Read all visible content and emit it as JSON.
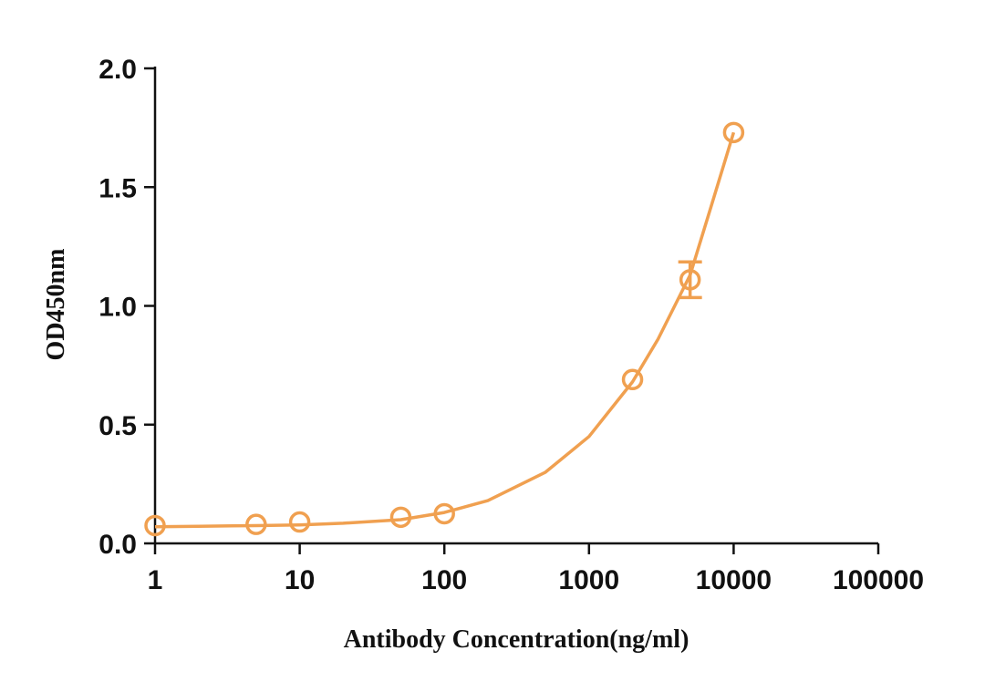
{
  "chart_data": {
    "type": "scatter",
    "title": "",
    "xlabel": "Antibody Concentration(ng/ml)",
    "ylabel": "OD450nm",
    "x_scale": "log",
    "xlim": [
      1,
      100000
    ],
    "ylim": [
      0,
      2.0
    ],
    "x_ticks": [
      1,
      10,
      100,
      1000,
      10000,
      100000
    ],
    "x_tick_labels": [
      "1",
      "10",
      "100",
      "1000",
      "10000",
      "100000"
    ],
    "y_ticks": [
      0,
      0.5,
      1.0,
      1.5,
      2.0
    ],
    "y_tick_labels": [
      "0.0",
      "0.5",
      "1.0",
      "1.5",
      "2.0"
    ],
    "grid": false,
    "color": "#F0A050",
    "series": [
      {
        "points": [
          {
            "x": 1,
            "y": 0.075,
            "err": 0
          },
          {
            "x": 5,
            "y": 0.08,
            "err": 0
          },
          {
            "x": 10,
            "y": 0.09,
            "err": 0
          },
          {
            "x": 50,
            "y": 0.11,
            "err": 0
          },
          {
            "x": 100,
            "y": 0.125,
            "err": 0
          },
          {
            "x": 2000,
            "y": 0.69,
            "err": 0
          },
          {
            "x": 5000,
            "y": 1.11,
            "err": 0.075
          },
          {
            "x": 10000,
            "y": 1.73,
            "err": 0
          }
        ],
        "fit_curve": [
          [
            1,
            0.07
          ],
          [
            2,
            0.072
          ],
          [
            5,
            0.075
          ],
          [
            10,
            0.078
          ],
          [
            20,
            0.085
          ],
          [
            50,
            0.1
          ],
          [
            100,
            0.13
          ],
          [
            200,
            0.18
          ],
          [
            500,
            0.3
          ],
          [
            1000,
            0.45
          ],
          [
            2000,
            0.68
          ],
          [
            3000,
            0.86
          ],
          [
            5000,
            1.13
          ],
          [
            7000,
            1.42
          ],
          [
            10000,
            1.73
          ]
        ]
      }
    ]
  }
}
